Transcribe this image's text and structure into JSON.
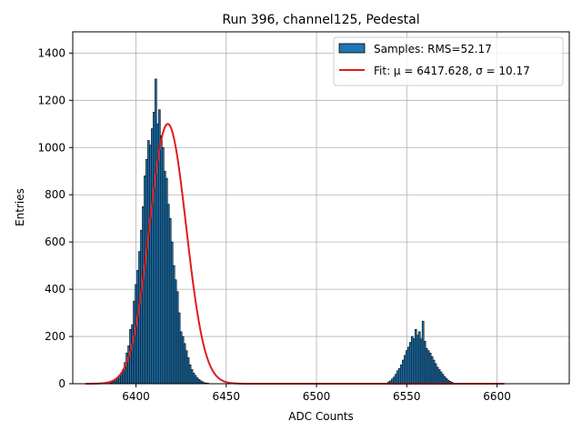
{
  "chart_data": {
    "type": "bar",
    "title": "Run 396, channel125, Pedestal",
    "xlabel": "ADC Counts",
    "ylabel": "Entries",
    "xlim": [
      6365,
      6640
    ],
    "ylim": [
      0,
      1490
    ],
    "xticks": [
      6400,
      6450,
      6500,
      6550,
      6600
    ],
    "yticks": [
      0,
      200,
      400,
      600,
      800,
      1000,
      1200,
      1400
    ],
    "grid": true,
    "legend_position": "top-right",
    "colors": {
      "bar_fill": "#1f77b4",
      "bar_edge": "#000000",
      "fit_line": "#e31a1c",
      "grid": "#b0b0b0"
    },
    "legend": {
      "samples_label": "Samples: RMS=52.17",
      "fit_label": "Fit: μ = 6417.628, σ = 10.17"
    },
    "series": [
      {
        "name": "Samples: RMS=52.17",
        "kind": "histogram",
        "bins": [
          [
            6386,
            3
          ],
          [
            6387,
            6
          ],
          [
            6388,
            10
          ],
          [
            6389,
            18
          ],
          [
            6390,
            25
          ],
          [
            6391,
            32
          ],
          [
            6392,
            45
          ],
          [
            6393,
            60
          ],
          [
            6394,
            90
          ],
          [
            6395,
            130
          ],
          [
            6396,
            160
          ],
          [
            6397,
            230
          ],
          [
            6398,
            250
          ],
          [
            6399,
            350
          ],
          [
            6400,
            420
          ],
          [
            6401,
            480
          ],
          [
            6402,
            560
          ],
          [
            6403,
            650
          ],
          [
            6404,
            750
          ],
          [
            6405,
            880
          ],
          [
            6406,
            950
          ],
          [
            6407,
            1030
          ],
          [
            6408,
            1010
          ],
          [
            6409,
            1080
          ],
          [
            6410,
            1150
          ],
          [
            6411,
            1290
          ],
          [
            6412,
            1100
          ],
          [
            6413,
            1160
          ],
          [
            6414,
            1050
          ],
          [
            6415,
            1000
          ],
          [
            6416,
            900
          ],
          [
            6417,
            870
          ],
          [
            6418,
            760
          ],
          [
            6419,
            700
          ],
          [
            6420,
            600
          ],
          [
            6421,
            500
          ],
          [
            6422,
            440
          ],
          [
            6423,
            390
          ],
          [
            6424,
            300
          ],
          [
            6425,
            220
          ],
          [
            6426,
            200
          ],
          [
            6427,
            170
          ],
          [
            6428,
            140
          ],
          [
            6429,
            110
          ],
          [
            6430,
            80
          ],
          [
            6431,
            60
          ],
          [
            6432,
            45
          ],
          [
            6433,
            35
          ],
          [
            6434,
            25
          ],
          [
            6435,
            18
          ],
          [
            6436,
            12
          ],
          [
            6437,
            8
          ],
          [
            6438,
            4
          ],
          [
            6439,
            3
          ],
          [
            6440,
            2
          ],
          [
            6540,
            8
          ],
          [
            6541,
            12
          ],
          [
            6542,
            20
          ],
          [
            6543,
            28
          ],
          [
            6544,
            40
          ],
          [
            6545,
            55
          ],
          [
            6546,
            65
          ],
          [
            6547,
            80
          ],
          [
            6548,
            100
          ],
          [
            6549,
            120
          ],
          [
            6550,
            140
          ],
          [
            6551,
            155
          ],
          [
            6552,
            175
          ],
          [
            6553,
            200
          ],
          [
            6554,
            190
          ],
          [
            6555,
            230
          ],
          [
            6556,
            205
          ],
          [
            6557,
            220
          ],
          [
            6558,
            190
          ],
          [
            6559,
            265
          ],
          [
            6560,
            180
          ],
          [
            6561,
            150
          ],
          [
            6562,
            140
          ],
          [
            6563,
            130
          ],
          [
            6564,
            115
          ],
          [
            6565,
            100
          ],
          [
            6566,
            85
          ],
          [
            6567,
            70
          ],
          [
            6568,
            60
          ],
          [
            6569,
            50
          ],
          [
            6570,
            40
          ],
          [
            6571,
            30
          ],
          [
            6572,
            22
          ],
          [
            6573,
            15
          ],
          [
            6574,
            10
          ],
          [
            6575,
            6
          ],
          [
            6576,
            3
          ]
        ]
      },
      {
        "name": "Fit: μ = 6417.628, σ = 10.17",
        "kind": "gaussian_fit",
        "mu": 6417.628,
        "sigma": 10.17,
        "amplitude": 1100,
        "x_range": [
          6372,
          6604
        ]
      }
    ]
  }
}
